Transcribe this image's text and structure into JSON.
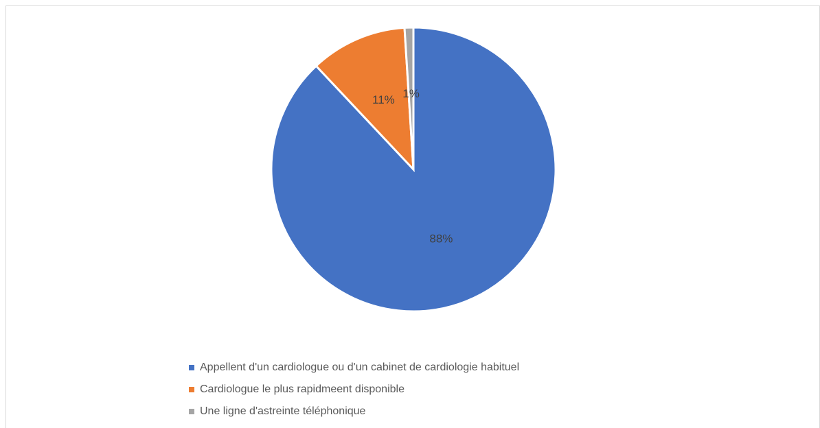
{
  "chart_data": {
    "type": "pie",
    "categories": [
      "Appellent d'un cardiologue ou d'un cabinet de cardiologie habituel",
      "Cardiologue le plus rapidmeent disponible",
      "Une ligne d'astreinte téléphonique"
    ],
    "values": [
      88,
      11,
      1
    ],
    "value_labels": [
      "88%",
      "11%",
      "1%"
    ],
    "colors": [
      "#4472c4",
      "#ed7d31",
      "#a5a5a5"
    ],
    "legend": "bottom"
  }
}
